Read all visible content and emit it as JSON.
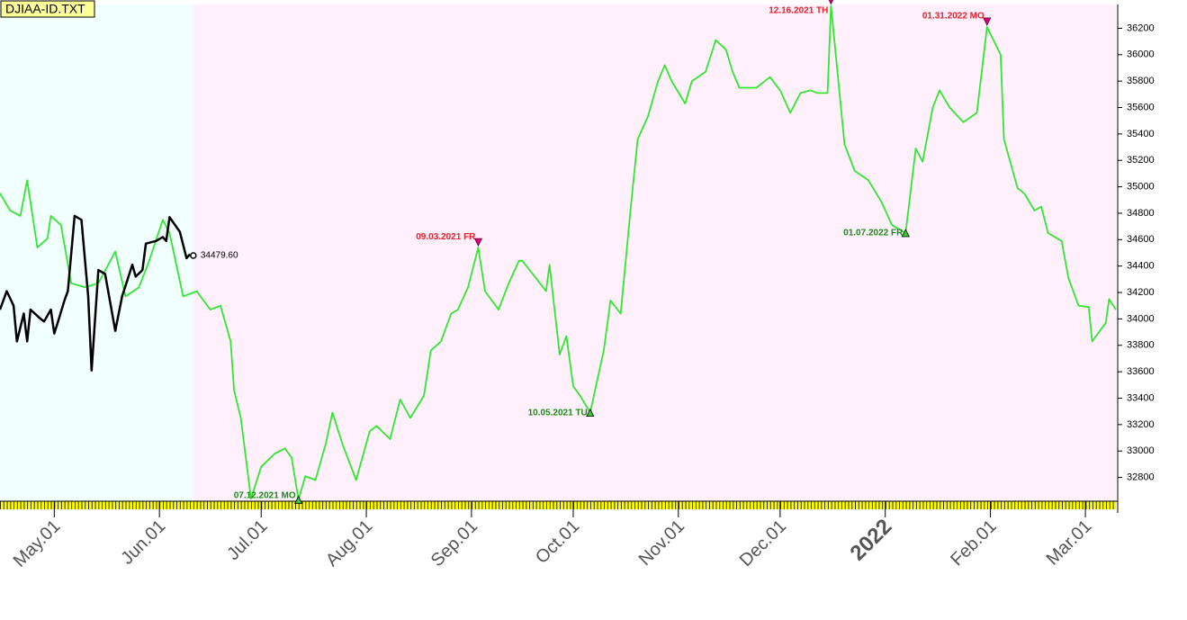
{
  "chart_data": {
    "type": "line",
    "title": "DJIAA-ID.TXT",
    "xlim": [
      -16,
      313
    ],
    "ylim": [
      32620,
      36380
    ],
    "xticks": [
      {
        "value": 0,
        "label": "May.01"
      },
      {
        "value": 31,
        "label": "Jun.01"
      },
      {
        "value": 61,
        "label": "Jul.01"
      },
      {
        "value": 92,
        "label": "Aug.01"
      },
      {
        "value": 123,
        "label": "Sep.01"
      },
      {
        "value": 153,
        "label": "Oct.01"
      },
      {
        "value": 184,
        "label": "Nov.01"
      },
      {
        "value": 214,
        "label": "Dec.01"
      },
      {
        "value": 245,
        "label": "2022",
        "color": "#8b0000"
      },
      {
        "value": 276,
        "label": "Feb.01"
      },
      {
        "value": 304,
        "label": "Mar.01"
      }
    ],
    "yticks": [
      32800,
      33000,
      33200,
      33400,
      33600,
      33800,
      34000,
      34200,
      34400,
      34600,
      34800,
      35000,
      35200,
      35400,
      35600,
      35800,
      36000,
      36200
    ],
    "series": [
      {
        "color": "#33e633",
        "x": [
          -16,
          -13,
          -10,
          -8,
          -5,
          -2,
          -1,
          2,
          5,
          9,
          13,
          18,
          21,
          25,
          28,
          32,
          34,
          38,
          42,
          46,
          49,
          52,
          53,
          55,
          58,
          61,
          65,
          68,
          70,
          72,
          74,
          77,
          80,
          82,
          85,
          89,
          93,
          95,
          99,
          102,
          105,
          109,
          111,
          114,
          117,
          119,
          122,
          125,
          127,
          131,
          134,
          137,
          138,
          142,
          145,
          146,
          149,
          151,
          153,
          155,
          158,
          162,
          164,
          167,
          170,
          172,
          175,
          178,
          180,
          182,
          186,
          188,
          192,
          195,
          198,
          200,
          202,
          207,
          211,
          214,
          217,
          220,
          223,
          225,
          228,
          229,
          233,
          236,
          240,
          244,
          247,
          251,
          254,
          256,
          259,
          261,
          264,
          268,
          272,
          275,
          279,
          280,
          284,
          286,
          289,
          291,
          293,
          297,
          299,
          302,
          305,
          306,
          310,
          311,
          313
        ],
        "values": [
          34950,
          34820,
          34780,
          35050,
          34540,
          34610,
          34780,
          34710,
          34270,
          34240,
          34270,
          34510,
          34170,
          34240,
          34440,
          34750,
          34650,
          34170,
          34210,
          34070,
          34100,
          33830,
          33460,
          33250,
          32640,
          32880,
          32980,
          33020,
          32950,
          32630,
          32810,
          32780,
          33050,
          33290,
          33050,
          32780,
          33150,
          33190,
          33090,
          33390,
          33250,
          33420,
          33760,
          33830,
          34040,
          34070,
          34240,
          34540,
          34210,
          34070,
          34270,
          34440,
          34440,
          34310,
          34210,
          34410,
          33730,
          33870,
          33490,
          33420,
          33290,
          33760,
          34140,
          34040,
          34850,
          35360,
          35530,
          35800,
          35920,
          35800,
          35630,
          35800,
          35870,
          36110,
          36040,
          35870,
          35750,
          35750,
          35830,
          35730,
          35560,
          35710,
          35730,
          35710,
          35710,
          36370,
          35320,
          35120,
          35050,
          34880,
          34710,
          34650,
          35290,
          35190,
          35600,
          35730,
          35600,
          35490,
          35560,
          36210,
          36000,
          35360,
          34990,
          34950,
          34820,
          34850,
          34650,
          34590,
          34310,
          34100,
          34090,
          33830,
          33970,
          34150,
          34070
        ]
      },
      {
        "color": "#000000",
        "x": [
          -16,
          -14,
          -12,
          -11,
          -9,
          -8,
          -7,
          -4,
          -3,
          -1,
          0,
          1,
          3,
          4,
          6,
          8,
          10,
          11,
          13,
          15,
          18,
          20,
          23,
          24,
          26,
          27,
          30,
          32,
          33,
          34,
          37,
          39,
          40
        ],
        "values": [
          34070,
          34210,
          34100,
          33830,
          34040,
          33830,
          34070,
          34000,
          33980,
          34070,
          33890,
          33970,
          34140,
          34210,
          34780,
          34750,
          34170,
          33610,
          34370,
          34340,
          33910,
          34170,
          34410,
          34320,
          34370,
          34570,
          34590,
          34620,
          34590,
          34770,
          34660,
          34460,
          34490
        ]
      }
    ],
    "last_price": {
      "x": 41,
      "value": 34479.6,
      "label": "34479.60"
    },
    "annotations": [
      {
        "text": "07.12.2021 MO",
        "x": 72,
        "y": 32630,
        "kind": "low"
      },
      {
        "text": "09.03.2021 FR",
        "x": 125,
        "y": 34540,
        "kind": "high"
      },
      {
        "text": "10.05.2021 TU",
        "x": 158,
        "y": 33290,
        "kind": "low"
      },
      {
        "text": "12.16.2021 TH",
        "x": 229,
        "y": 36370,
        "kind": "high"
      },
      {
        "text": "01.07.2022 FR",
        "x": 251,
        "y": 34650,
        "kind": "low"
      },
      {
        "text": "01.31.2022 MO",
        "x": 275,
        "y": 36210,
        "kind": "high"
      }
    ]
  }
}
